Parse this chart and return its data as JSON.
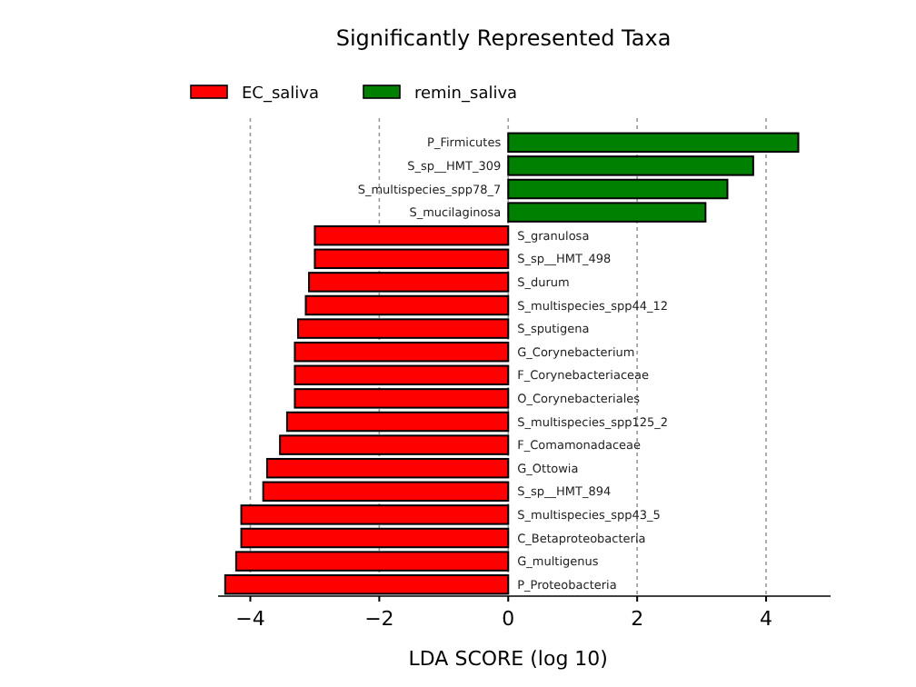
{
  "chart_data": {
    "type": "bar",
    "orientation": "horizontal",
    "title": "Significantly Represented Taxa",
    "xlabel": "LDA SCORE (log 10)",
    "categories": [
      "P_Firmicutes",
      "S_sp__HMT_309",
      "S_multispecies_spp78_7",
      "S_mucilaginosa",
      "S_granulosa",
      "S_sp__HMT_498",
      "S_durum",
      "S_multispecies_spp44_12",
      "S_sputigena",
      "G_Corynebacterium",
      "F_Corynebacteriaceae",
      "O_Corynebacteriales",
      "S_multispecies_spp125_2",
      "F_Comamonadaceae",
      "G_Ottowia",
      "S_sp__HMT_894",
      "S_multispecies_spp43_5",
      "C_Betaproteobacteria",
      "G_multigenus",
      "P_Proteobacteria"
    ],
    "series": [
      {
        "name": "EC_saliva",
        "color": "#ff0000",
        "values": [
          null,
          null,
          null,
          null,
          -3.0,
          -3.0,
          -3.09,
          -3.14,
          -3.26,
          -3.31,
          -3.31,
          -3.31,
          -3.43,
          -3.54,
          -3.74,
          -3.8,
          -4.14,
          -4.14,
          -4.22,
          -4.39
        ]
      },
      {
        "name": "remin_saliva",
        "color": "#008000",
        "values": [
          4.5,
          3.8,
          3.4,
          3.06,
          null,
          null,
          null,
          null,
          null,
          null,
          null,
          null,
          null,
          null,
          null,
          null,
          null,
          null,
          null,
          null
        ]
      }
    ],
    "xlim": [
      -4.5,
      5
    ],
    "xticks": [
      -4,
      -2,
      0,
      2,
      4
    ],
    "grid": "x",
    "legend": "top left"
  }
}
